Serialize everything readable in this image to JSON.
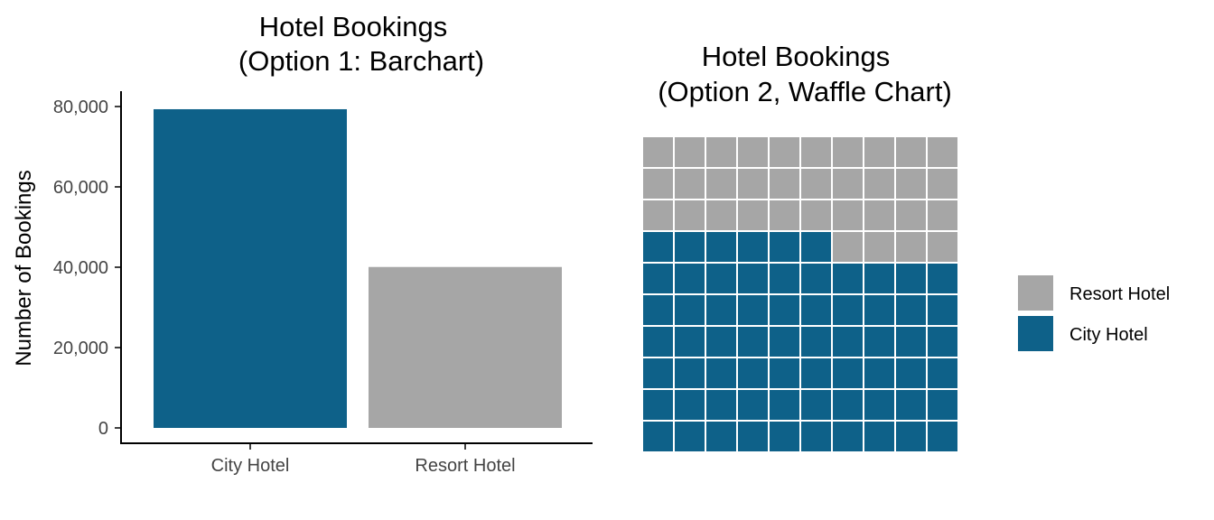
{
  "colors": {
    "city": "#0e6189",
    "resort": "#a6a6a6",
    "axis": "#000000",
    "tick_text": "#444444",
    "tile_border": "#ffffff"
  },
  "chart_data": [
    {
      "type": "bar",
      "title_line1": "Hotel Bookings",
      "title_line2": "(Option 1: Barchart)",
      "xlabel": "",
      "ylabel": "Number of Bookings",
      "categories": [
        "City Hotel",
        "Resort Hotel"
      ],
      "values": [
        79330,
        40060
      ],
      "ylim": [
        0,
        80000
      ],
      "yticks": [
        0,
        20000,
        40000,
        60000,
        80000
      ],
      "ytick_labels": [
        "0",
        "20,000",
        "40,000",
        "60,000",
        "80,000"
      ],
      "bar_colors": [
        "city",
        "resort"
      ],
      "grid": false
    },
    {
      "type": "waffle",
      "title_line1": "Hotel Bookings",
      "title_line2": "(Option 2, Waffle Chart)",
      "grid_rows": 10,
      "grid_cols": 10,
      "series": [
        {
          "name": "City Hotel",
          "tiles": 66,
          "color": "city"
        },
        {
          "name": "Resort Hotel",
          "tiles": 34,
          "color": "resort"
        }
      ],
      "legend": {
        "position": "right",
        "items": [
          {
            "label": "Resort Hotel",
            "color": "resort"
          },
          {
            "label": "City Hotel",
            "color": "city"
          }
        ]
      }
    }
  ]
}
